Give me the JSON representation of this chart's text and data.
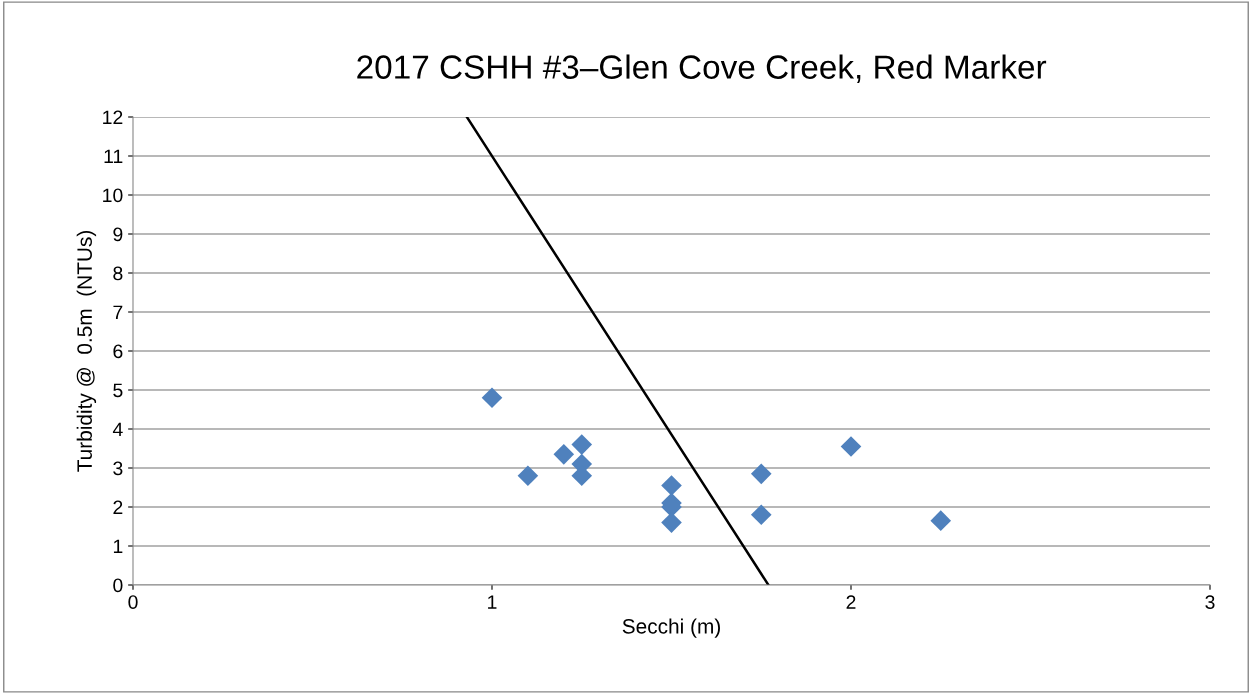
{
  "chart_data": {
    "type": "scatter",
    "title": "2017 CSHH #3–Glen Cove Creek, Red Marker",
    "xlabel": "Secchi (m)",
    "ylabel": "Turbidity @  0.5m  (NTUs)",
    "series": [
      {
        "color": "#4f81bd",
        "marker": "diamond",
        "x": [
          1.0,
          1.1,
          1.2,
          1.25,
          1.25,
          1.25,
          1.5,
          1.5,
          1.5,
          1.5,
          1.75,
          1.75,
          2.0,
          2.25
        ],
        "values": [
          4.8,
          2.8,
          3.35,
          3.6,
          3.1,
          2.8,
          2.55,
          2.1,
          2.0,
          1.6,
          2.85,
          1.8,
          3.55,
          1.65
        ]
      },
      {
        "type": "line",
        "color": "#000000",
        "x": [
          0.93,
          1.77
        ],
        "values": [
          12,
          0
        ]
      }
    ],
    "xlim": [
      0,
      3
    ],
    "xticks": [
      0,
      1,
      2,
      3
    ],
    "ylim": [
      0,
      12
    ],
    "yticks": [
      0,
      1,
      2,
      3,
      4,
      5,
      6,
      7,
      8,
      9,
      10,
      11,
      12
    ],
    "grid": "y",
    "legend": false
  }
}
